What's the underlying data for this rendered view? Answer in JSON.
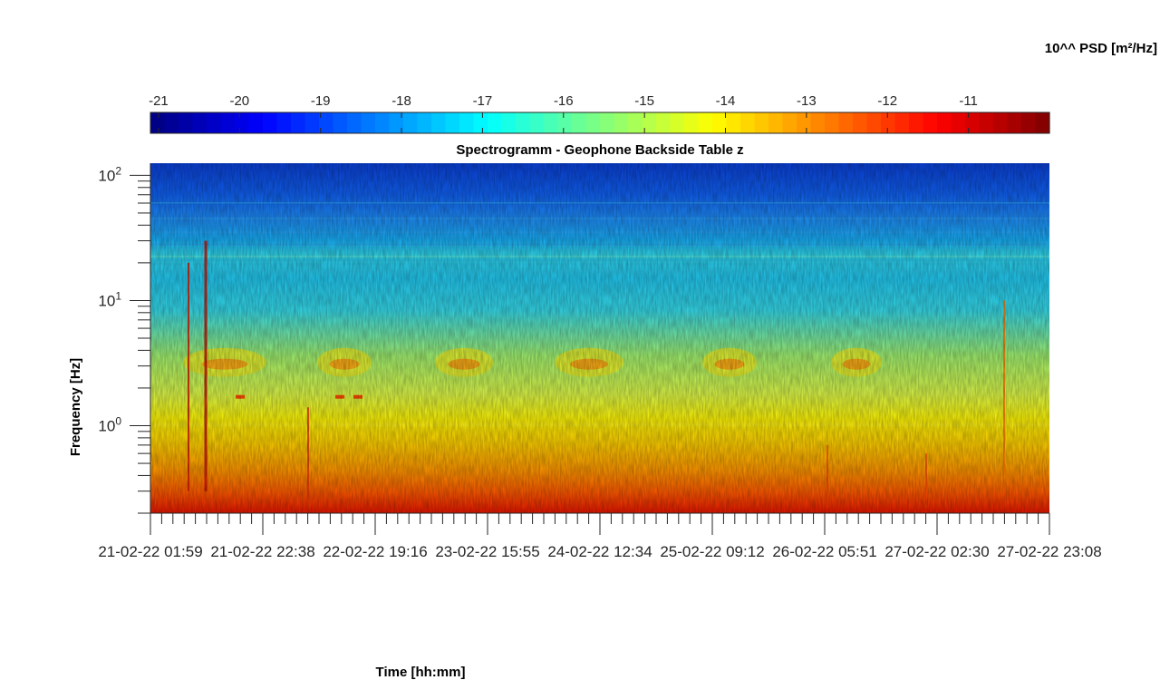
{
  "chart_data": {
    "type": "heatmap",
    "title": "Spectrogramm - Geophone Backside Table z",
    "xlabel": "Time [hh:mm]",
    "ylabel": "Frequency [Hz]",
    "colorbar_label": "10^^ PSD [m²/Hz]",
    "colormap": "jet",
    "colorbar_ticks": [
      "-21",
      "-20",
      "-19",
      "-18",
      "-17",
      "-16",
      "-15",
      "-14",
      "-13",
      "-12",
      "-11"
    ],
    "color_range": [
      -21.1,
      -10
    ],
    "y_scale": "log",
    "ylim": [
      0.2,
      125
    ],
    "y_ticks": [
      {
        "value": 1,
        "label_base": "10",
        "label_exp": "0"
      },
      {
        "value": 10,
        "label_base": "10",
        "label_exp": "1"
      },
      {
        "value": 100,
        "label_base": "10",
        "label_exp": "2"
      }
    ],
    "x_range": [
      "21-02-22 01:59",
      "27-02-22 23:08"
    ],
    "x_ticks": [
      "21-02-22 01:59",
      "21-02-22 22:38",
      "22-02-22 19:16",
      "23-02-22 15:55",
      "24-02-22 12:34",
      "25-02-22 09:12",
      "26-02-22 05:51",
      "27-02-22 02:30",
      "27-02-22 23:08"
    ],
    "approx_log10_psd_by_frequency": [
      {
        "frequency_hz": 100,
        "log10_psd": -19.5
      },
      {
        "frequency_hz": 50,
        "log10_psd": -19.0
      },
      {
        "frequency_hz": 25,
        "log10_psd": -18.0
      },
      {
        "frequency_hz": 10,
        "log10_psd": -17.5
      },
      {
        "frequency_hz": 3,
        "log10_psd": -15.7
      },
      {
        "frequency_hz": 1,
        "log10_psd": -15.0
      },
      {
        "frequency_hz": 0.5,
        "log10_psd": -13.5
      },
      {
        "frequency_hz": 0.25,
        "log10_psd": -12.0
      }
    ]
  }
}
